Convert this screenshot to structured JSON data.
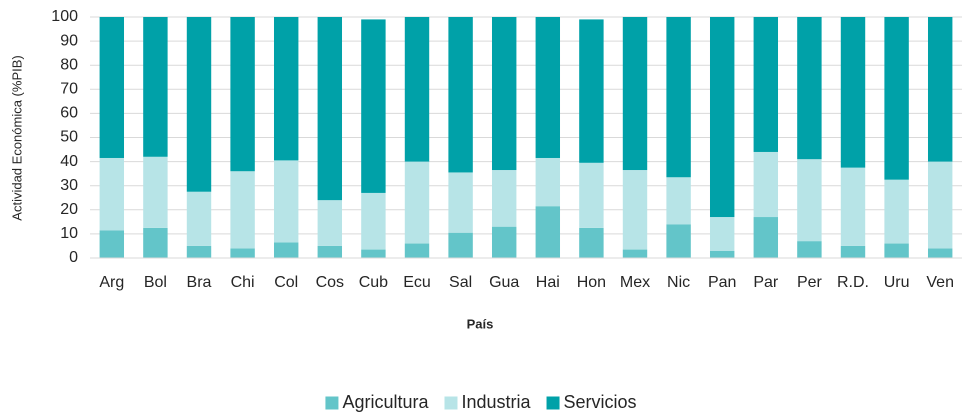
{
  "chart_data": {
    "type": "stacked_bar",
    "xlabel": "País",
    "ylabel": "Actividad  Económica (%PIB)",
    "categories": [
      "Arg",
      "Bol",
      "Bra",
      "Chi",
      "Col",
      "Cos",
      "Cub",
      "Ecu",
      "Sal",
      "Gua",
      "Hai",
      "Hon",
      "Mex",
      "Nic",
      "Pan",
      "Par",
      "Per",
      "R.D.",
      "Uru",
      "Ven"
    ],
    "series": [
      {
        "name": "Agricultura",
        "color": "#63c5c9",
        "values": [
          11.5,
          12.5,
          5,
          4,
          6.5,
          5,
          3.5,
          6,
          10.5,
          13,
          21.5,
          12.5,
          3.5,
          14,
          3,
          17,
          7,
          5,
          6,
          4
        ]
      },
      {
        "name": "Industria",
        "color": "#b7e4e7",
        "values": [
          30,
          29.5,
          22.5,
          32,
          34,
          19,
          23.5,
          34,
          25,
          23.5,
          20,
          27,
          33,
          19.5,
          14,
          27,
          34,
          32.5,
          26.5,
          36
        ]
      },
      {
        "name": "Servicios",
        "color": "#00a1a8",
        "values": [
          58.5,
          58,
          72.5,
          64,
          59.5,
          76,
          72,
          60,
          64.5,
          63.5,
          58.5,
          59.5,
          63.5,
          66.5,
          83,
          56,
          59,
          62.5,
          67.5,
          60
        ]
      }
    ],
    "ylim": [
      0,
      100
    ],
    "yticks": [
      0,
      10,
      20,
      30,
      40,
      50,
      60,
      70,
      80,
      90,
      100
    ],
    "grid": true,
    "legend": "bottom"
  }
}
